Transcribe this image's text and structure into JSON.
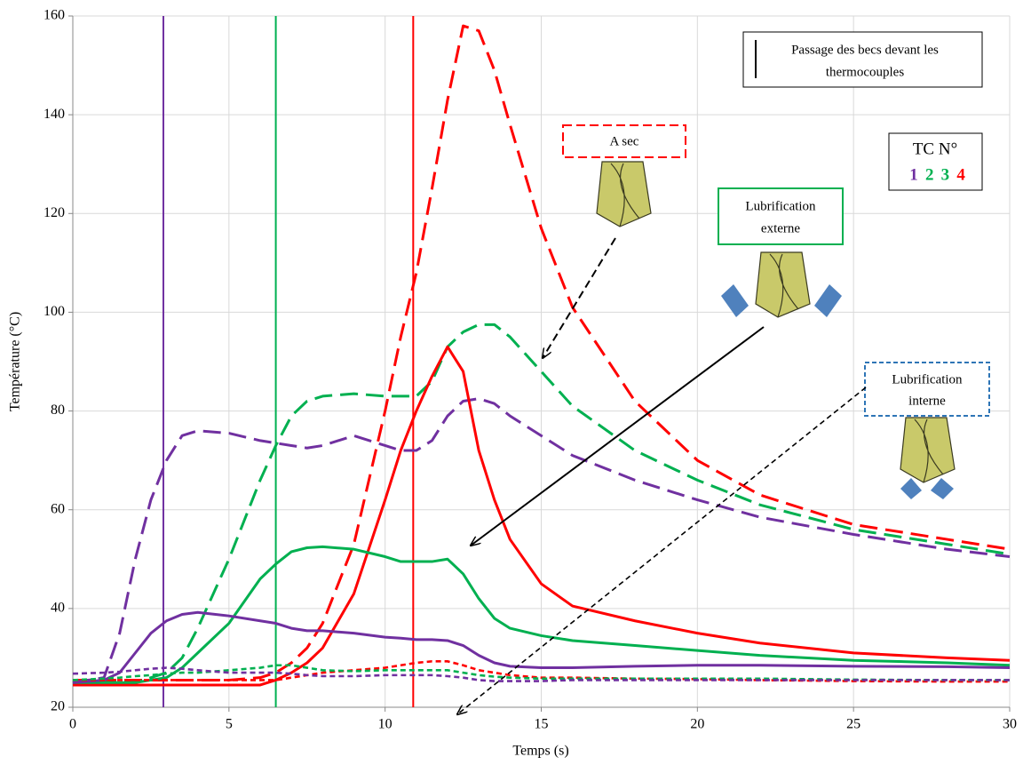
{
  "chart_data": {
    "type": "line",
    "xlabel": "Temps (s)",
    "ylabel": "Température (°C)",
    "xlim": [
      0,
      30
    ],
    "xticks": [
      0,
      5,
      10,
      15,
      20,
      25,
      30
    ],
    "ylim": [
      20,
      160
    ],
    "yticks": [
      20,
      40,
      60,
      80,
      100,
      120,
      140,
      160
    ],
    "grid": true,
    "x": [
      0,
      1,
      1.5,
      2,
      2.5,
      3,
      3.5,
      4,
      5,
      6,
      6.5,
      7,
      7.5,
      8,
      9,
      10,
      10.5,
      11,
      11.5,
      12,
      12.5,
      13,
      13.5,
      14,
      15,
      16,
      18,
      20,
      22,
      25,
      28,
      30
    ],
    "series": [
      {
        "color": "#ff0000",
        "dash": "long",
        "values": [
          25.5,
          25.5,
          25.5,
          25.5,
          25.5,
          25.5,
          25.5,
          25.5,
          25.5,
          26,
          27,
          29,
          32,
          37,
          53,
          80,
          95,
          108,
          125,
          143,
          158,
          157,
          149,
          138,
          117,
          101,
          82,
          70,
          63,
          57,
          54,
          52
        ]
      },
      {
        "color": "#00b050",
        "dash": "long",
        "values": [
          25,
          25,
          25,
          25,
          26,
          27,
          30,
          36,
          50,
          66,
          73,
          79,
          82,
          83,
          83.5,
          83,
          83,
          83,
          86,
          93,
          96,
          97.5,
          97.5,
          95,
          88,
          81,
          72,
          66,
          61,
          56,
          53,
          51
        ]
      },
      {
        "color": "#7030a0",
        "dash": "long",
        "values": [
          25,
          26,
          35,
          50,
          62,
          70,
          75,
          76,
          75.5,
          74,
          73.5,
          73,
          72.5,
          73,
          75,
          73,
          72,
          72,
          74,
          79,
          82,
          82.5,
          81.5,
          79,
          75,
          71,
          66,
          62,
          58.5,
          55,
          52,
          50.5
        ]
      },
      {
        "color": "#ff0000",
        "dash": "solid",
        "values": [
          24.5,
          24.5,
          24.5,
          24.5,
          24.5,
          24.5,
          24.5,
          24.5,
          24.5,
          24.5,
          25.5,
          27,
          29,
          32,
          43,
          62,
          72,
          80,
          87,
          93,
          88,
          72,
          62,
          54,
          45,
          40.5,
          37.5,
          35,
          33,
          31,
          30,
          29.5
        ]
      },
      {
        "color": "#00b050",
        "dash": "solid",
        "values": [
          25,
          25,
          25,
          25,
          25.5,
          26,
          28,
          31,
          37,
          46,
          49,
          51.5,
          52.3,
          52.5,
          52,
          50.5,
          49.5,
          49.5,
          49.5,
          50,
          47,
          42,
          38,
          36,
          34.5,
          33.5,
          32.5,
          31.5,
          30.5,
          29.5,
          29,
          28.5
        ]
      },
      {
        "color": "#7030a0",
        "dash": "solid",
        "values": [
          25,
          25.5,
          27,
          31,
          35,
          37.5,
          38.8,
          39.2,
          38.5,
          37.5,
          37,
          36,
          35.5,
          35.5,
          35,
          34.2,
          34,
          33.7,
          33.7,
          33.5,
          32.5,
          30.5,
          29,
          28.3,
          28,
          28,
          28.3,
          28.5,
          28.5,
          28.3,
          28.2,
          28
        ]
      },
      {
        "color": "#ff0000",
        "dash": "short",
        "values": [
          25.5,
          25.5,
          25.5,
          25.5,
          25.5,
          25.5,
          25.5,
          25.5,
          25.5,
          25.5,
          25.5,
          26,
          26.5,
          27,
          27.5,
          28,
          28.5,
          29,
          29.3,
          29.3,
          28.5,
          27.5,
          27,
          26.5,
          26,
          26,
          25.8,
          25.7,
          25.5,
          25.3,
          25.2,
          25.2
        ]
      },
      {
        "color": "#00b050",
        "dash": "short",
        "values": [
          25.5,
          25.8,
          26,
          26.3,
          26.5,
          26.8,
          27,
          27,
          27.5,
          28,
          28.5,
          28.5,
          28,
          27.5,
          27.3,
          27.5,
          27.5,
          27.5,
          27.5,
          27.5,
          27,
          26.5,
          26.2,
          26,
          25.8,
          25.8,
          25.8,
          25.8,
          25.8,
          25.6,
          25.5,
          25.5
        ]
      },
      {
        "color": "#7030a0",
        "dash": "short",
        "values": [
          26.8,
          27,
          27.2,
          27.5,
          27.8,
          28,
          27.8,
          27.5,
          27,
          27,
          27,
          26.8,
          26.5,
          26.3,
          26.3,
          26.5,
          26.5,
          26.5,
          26.5,
          26.3,
          26,
          25.5,
          25.3,
          25.3,
          25.3,
          25.5,
          25.5,
          25.5,
          25.5,
          25.5,
          25.5,
          25.5
        ]
      }
    ],
    "markers": [
      {
        "x": 2.9,
        "color": "#7030a0"
      },
      {
        "x": 6.5,
        "color": "#00b050"
      },
      {
        "x": 10.9,
        "color": "#ff0000"
      }
    ],
    "annotations": {
      "passage": {
        "lines": [
          "Passage des becs devant les",
          "thermocouples"
        ]
      },
      "sec": {
        "lines": [
          "A sec"
        ]
      },
      "externe": {
        "lines": [
          "Lubrification",
          "externe"
        ]
      },
      "interne": {
        "lines": [
          "Lubrification",
          "interne"
        ]
      },
      "tc": {
        "title": "TC N°",
        "items": [
          {
            "label": "1",
            "color": "#7030a0"
          },
          {
            "label": "2",
            "color": "#00b050"
          },
          {
            "label": "3",
            "color": "#00b050"
          },
          {
            "label": "4",
            "color": "#ff0000"
          }
        ]
      }
    }
  }
}
